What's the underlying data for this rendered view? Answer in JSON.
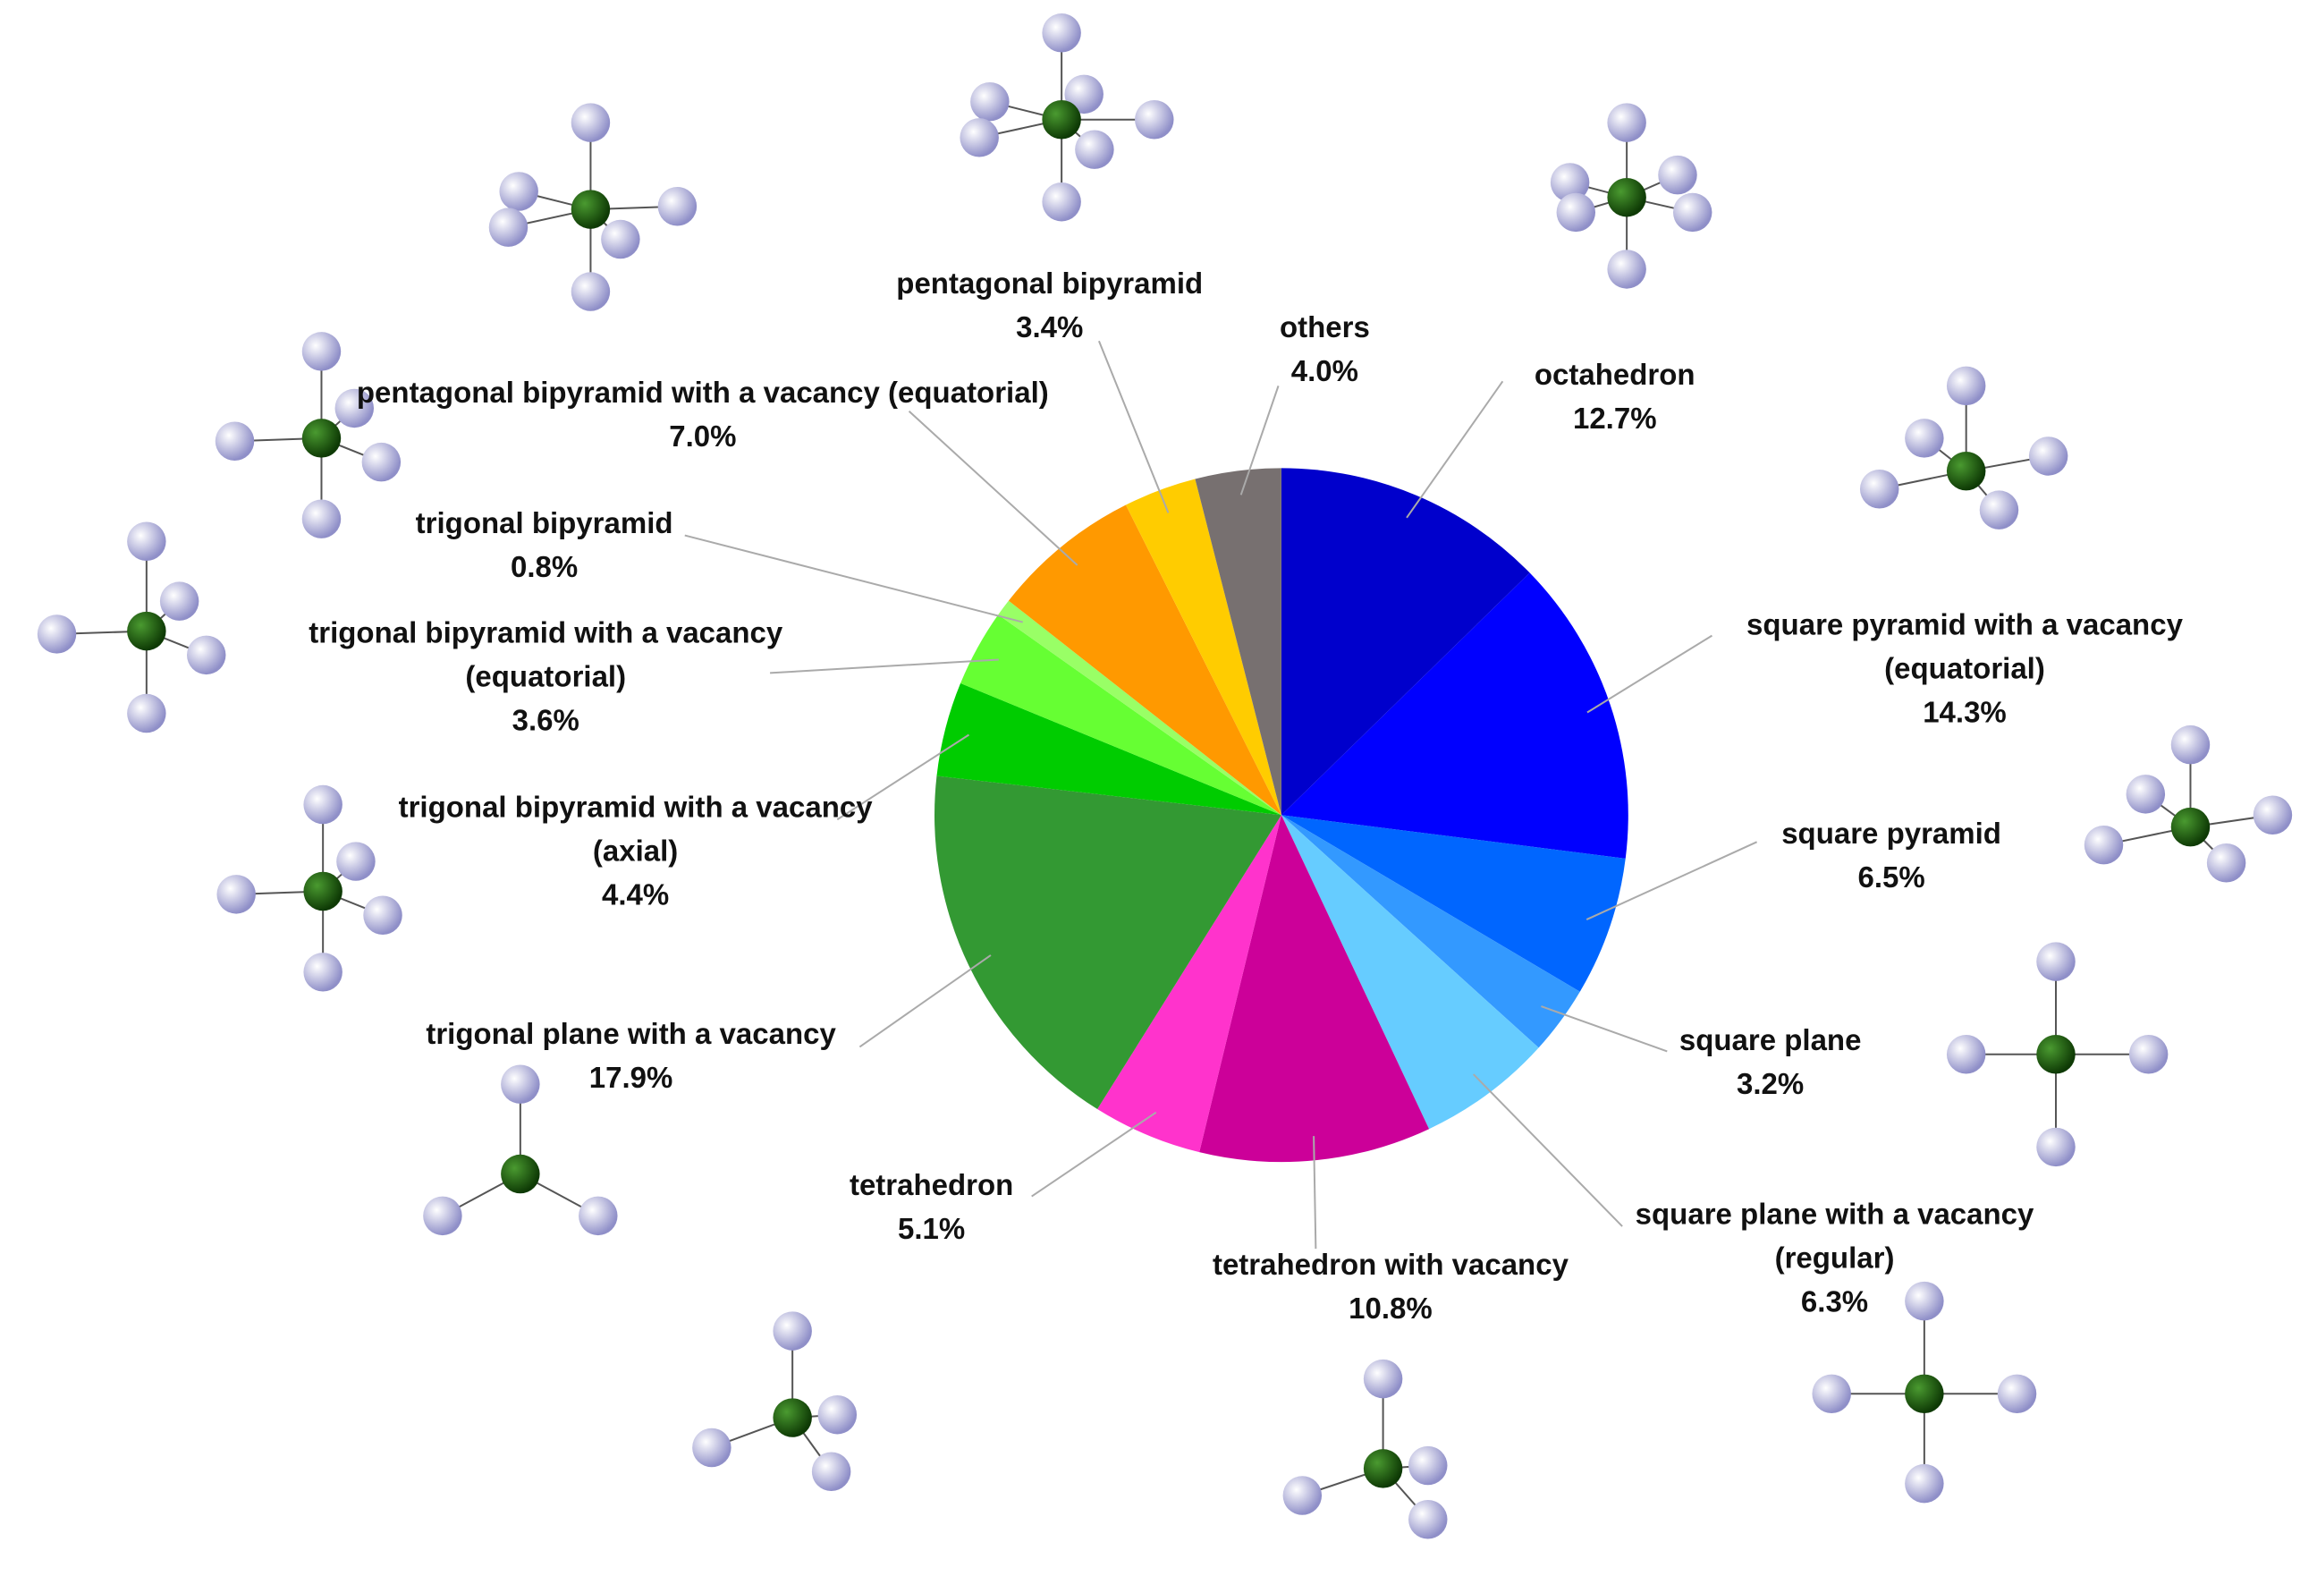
{
  "chart_data": {
    "type": "pie",
    "categories": [
      "octahedron",
      "square pyramid with a vacancy (equatorial)",
      "square pyramid",
      "square plane",
      "square plane with a vacancy (regular)",
      "tetrahedron with vacancy",
      "tetrahedron",
      "trigonal plane with a vacancy",
      "trigonal bipyramid with a vacancy (axial)",
      "trigonal bipyramid with a vacancy (equatorial)",
      "trigonal bipyramid",
      "pentagonal bipyramid with a vacancy (equatorial)",
      "pentagonal bipyramid",
      "others"
    ],
    "values": [
      12.7,
      14.3,
      6.5,
      3.2,
      6.3,
      10.8,
      5.1,
      17.9,
      4.4,
      3.6,
      0.8,
      7.0,
      3.4,
      4.0
    ],
    "value_labels": [
      "12.7%",
      "14.3%",
      "6.5%",
      "3.2%",
      "6.3%",
      "10.8%",
      "5.1%",
      "17.9%",
      "4.4%",
      "3.6%",
      "0.8%",
      "7.0%",
      "3.4%",
      "4.0%"
    ],
    "colors": [
      "#0000cc",
      "#0000ff",
      "#0066ff",
      "#3399ff",
      "#66ccff",
      "#cc0099",
      "#ff33cc",
      "#339933",
      "#00cc00",
      "#66ff33",
      "#99ff66",
      "#ff9900",
      "#ffcc00",
      "#777070"
    ]
  }
}
